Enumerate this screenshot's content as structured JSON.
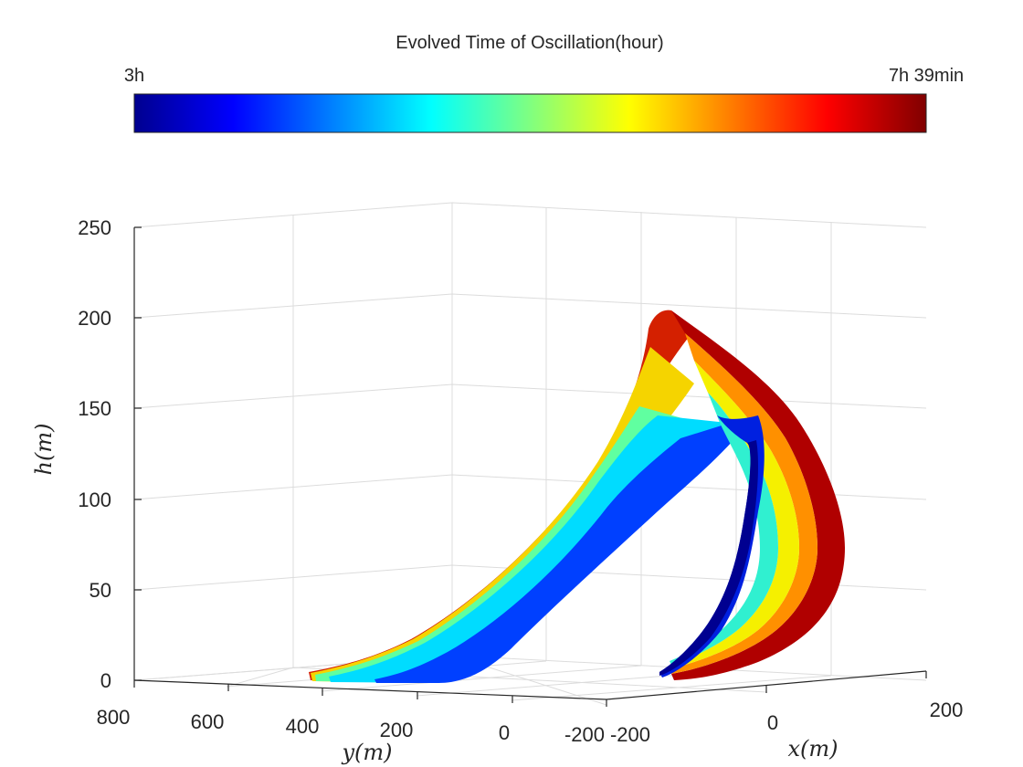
{
  "chart_data": {
    "type": "3d-surface-ribbon",
    "colorbar": {
      "title": "Evolved Time of Oscillation(hour)",
      "min_label": "3h",
      "max_label": "7h 39min",
      "colormap": "jet",
      "colors": [
        "#00008f",
        "#0000ff",
        "#0080ff",
        "#00ffff",
        "#80ff80",
        "#ffff00",
        "#ff8000",
        "#ff0000",
        "#800000"
      ]
    },
    "axes": {
      "xlabel": "x(m)",
      "ylabel": "y(m)",
      "zlabel": "h(m)",
      "x_ticks": [
        "-200",
        "0",
        "200"
      ],
      "y_ticks": [
        "800",
        "600",
        "400",
        "200",
        "0",
        "-200"
      ],
      "z_ticks": [
        "0",
        "50",
        "100",
        "150",
        "200",
        "250"
      ],
      "xlim": [
        -200,
        200
      ],
      "ylim": [
        -200,
        800
      ],
      "zlim": [
        0,
        250
      ],
      "grid": true
    }
  }
}
